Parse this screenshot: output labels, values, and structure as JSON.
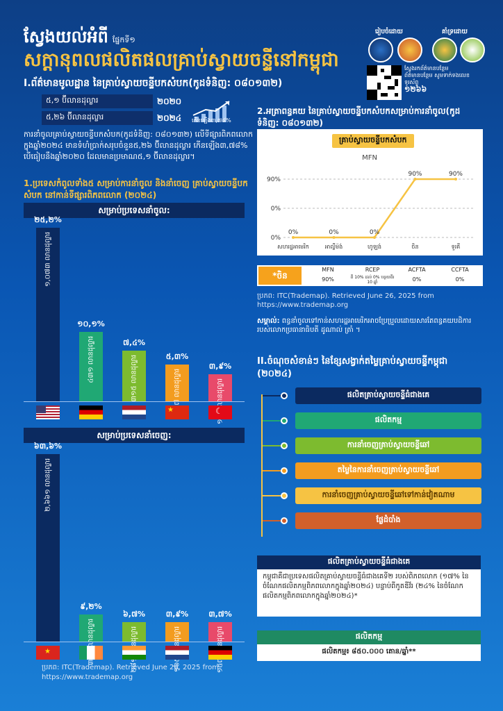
{
  "header": {
    "title_line1": "ស្វែងយល់អំពី",
    "part_label": "ផ្នែកទី១",
    "title_line2": "សក្តានុពលផលិតផលគ្រាប់ស្វាយចន្ទីនៅកម្ពុជា"
  },
  "section1": {
    "heading": "I.ព័ត៌មានមូលដ្ឋាន នៃគ្រាប់ស្វាយចន្ទីបកសំបក(កូដទំនិញ: ០៨០១៣២)",
    "value_2020": "៥,១ ប៊ីលានដុល្លារ",
    "year_2020": "២០២០",
    "value_2024": "៥,២៦ ប៊ីលានដុល្លារ",
    "year_2024": "២០២៤",
    "growth_label": "កើនឡើង៣,៧៨%",
    "paragraph": "ការនាំចូលគ្រាប់ស្វាយចន្ទីបកសំបក(កូដទំនិញ: ០៨០១៣២) លើទីផ្សារពិភពលោក ក្នុងឆ្នាំ២០២៤ មានទំហំប្រាក់សរុបចំនួន៥,២៦ ប៊ីលានដុល្លារ កើនឡើង៣,៧៨% បើធៀបនឹងឆ្នាំ២០២០ ដែលមានប្រមាណ៥,១ ប៊ីលានដុល្លារ។",
    "subheading": "1.ប្រទេសកំពូលទាំង៥ សម្រាប់ការនាំចូល និងនាំចេញ គ្រាប់ស្វាយចន្ទីបកសំបក នៅកាន់ទីផ្សារពិភពលោក (២០២៤)"
  },
  "imports_panel": {
    "title": "សម្រាប់ប្រទេសនាំចូល:",
    "bars": [
      {
        "country": "United States",
        "pct": "២៥,២%",
        "label": "១,០៧៣ លានដុល្លារ",
        "color": "#0b2a60",
        "value": 25.2
      },
      {
        "country": "Germany",
        "pct": "១០,១%",
        "label": "៤៣១ លានដុល្លារ",
        "color": "#20a874",
        "value": 10.1
      },
      {
        "country": "Netherlands",
        "pct": "៧,៤%",
        "label": "៣១៥ លានដុល្លារ",
        "color": "#7dbb2f",
        "value": 7.4
      },
      {
        "country": "China",
        "pct": "៥,៣%",
        "label": "២២៧ លានដុល្លារ",
        "color": "#f39c1f",
        "value": 5.3
      },
      {
        "country": "Turkey",
        "pct": "៣,៩%",
        "label": "១៦៥ លានដុល្លារ",
        "color": "#e84a6a",
        "value": 3.9
      }
    ]
  },
  "exports_panel": {
    "title": "សម្រាប់ប្រទេសនាំចេញ:",
    "bars": [
      {
        "country": "Vietnam",
        "pct": "៦៣,៦%",
        "label": "២,៦៦១ លានដុល្លារ",
        "color": "#0b2a60",
        "value": 63.6
      },
      {
        "country": "Ireland",
        "pct": "៩,២%",
        "label": "៣៨៥ លានដុល្លារ",
        "color": "#20a874",
        "value": 9.2
      },
      {
        "country": "India",
        "pct": "៦,៧%",
        "label": "២៨១ លានដុល្លារ",
        "color": "#7dbb2f",
        "value": 6.7
      },
      {
        "country": "Netherlands",
        "pct": "៣,៩%",
        "label": "១៦៥ លានដុល្លារ",
        "color": "#f39c1f",
        "value": 3.9
      },
      {
        "country": "Germany",
        "pct": "៣,៧%",
        "label": "១៥៧ លានដុល្លារ",
        "color": "#e84a6a",
        "value": 3.7
      }
    ]
  },
  "footer": {
    "source": "ប្រភព: ITC(Trademap). Retrieved June 26, 2025 from",
    "url": "https://www.trademap.org"
  },
  "logos": {
    "prepared_by": "រៀបចំដោយ",
    "supported_by": "គាំទ្រដោយ",
    "qr_text_1": "ស្វែងរកព័ត៌មានបន្ថែម",
    "qr_text_2": "ព័ត៌មានបន្ថែម សូមទាក់ទងលេខទូរស័ព្ទ",
    "hotline": "១២៦៦"
  },
  "section2": {
    "heading": "2.អត្រាពន្ធគយ នៃគ្រាប់ស្វាយចន្ទីបកសំបកសម្រាប់ការនាំចូល(កូដទំនិញ: ០៨០១៣២)",
    "pill": "គ្រាប់ស្វាយចន្ទីបកសំបក",
    "table_country": "*ចិន",
    "table_headers": [
      "MFN",
      "RCEP",
      "ACFTA",
      "CCFTA"
    ],
    "table_values": [
      "90%",
      "ពី 10% ដល់ 0% បន្ថយពីរ 10 ឆ្នាំ",
      "0%",
      "0%"
    ],
    "source": "ប្រភព: ITC(Trademap). Retrieved June 26, 2025 from",
    "url": "https://www.trademap.org",
    "note_label": "សម្គាល់:",
    "note": "ពន្ធនាំចូលទៅកាន់សហរដ្ឋអាមេរិកអាចប្រែប្រួលដោយសារតែពន្ធគយបដិការ របស់លោកប្រធានាធិបតី ដូណាល់ ត្រាំ ។"
  },
  "chart_data": {
    "type": "line",
    "title": "MFN",
    "categories": [
      "សហរដ្ឋអាមេរិក",
      "អាល្លឺម៉ង់",
      "ហូឡង់",
      "ចិន",
      "ទួរគី"
    ],
    "series": [
      {
        "name": "MFN",
        "values": [
          0,
          0,
          0,
          90,
          90
        ]
      }
    ],
    "data_labels": [
      "0%",
      "0%",
      "0%",
      "90%",
      "90%"
    ],
    "y_ticks": [
      "90%",
      "0%",
      "0%"
    ],
    "ylim": [
      0,
      90
    ],
    "xlabel": "",
    "ylabel": ""
  },
  "section3": {
    "heading": "II.ចំណុចសំខាន់ៗ នៃខ្សែសង្វាក់តម្លៃគ្រាប់ស្វាយចន្ទីកម្ពុជា (២០២៤)",
    "steps": [
      {
        "label": "ផលិតគ្រាប់ស្វាយចន្ទីធំជាងគេ",
        "color": "#0b2a60"
      },
      {
        "label": "ផលិតកម្ម",
        "color": "#20a874"
      },
      {
        "label": "ការនាំចេញគ្រាប់ស្វាយចន្ទីឆៅ",
        "color": "#7dbb2f"
      },
      {
        "label": "តម្លៃនៃការនាំចេញគ្រាប់ស្វាយចន្ទីឆៅ",
        "color": "#f39c1f"
      },
      {
        "label": "ការនាំចេញគ្រាប់ស្វាយចន្ទីឆៅទៅកាន់វៀតណាម",
        "color": "#f6c343"
      },
      {
        "label": "ផ្លែដំបាំង",
        "color": "#d2602a"
      }
    ],
    "box1_title": "ផលិតគ្រាប់ស្វាយចន្ទីធំជាងគេ",
    "box1_text": "កម្ពុជាគឺជាប្រទេសផលិតគ្រាប់ស្វាយចន្ទីធំជាងគេទី២ របស់ពិភពលោក (១៧% នៃចំណែកផលិតកម្មពិភពលោកក្នុងឆ្នាំ២០២៤) បន្ទាប់ពីកូតឌីវ័រ (២៤% នៃចំណែកផលិតកម្មពិភពលោកក្នុងឆ្នាំ២០២៤)*",
    "box2_title": "ផលិតកម្ម",
    "box2_text": "ផលិតកម្ម៖ ៨៥០.០០០ តោន/ឆ្នាំ**"
  }
}
